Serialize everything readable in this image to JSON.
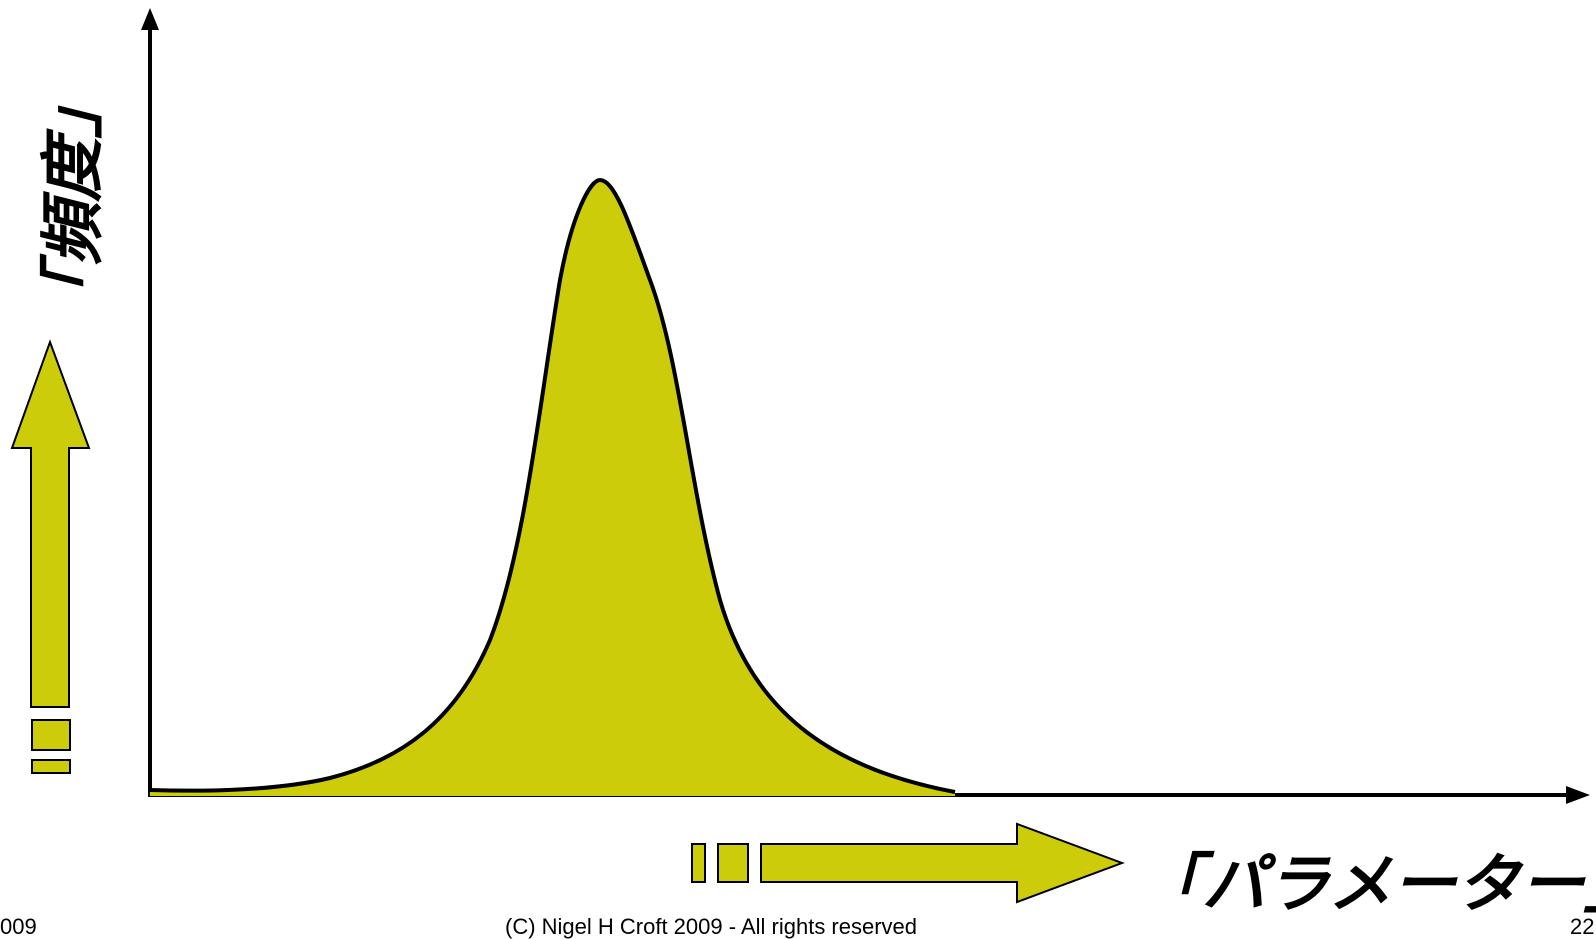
{
  "labels": {
    "y_axis": "「頻度」",
    "x_axis": "「パラメーター」"
  },
  "footer": {
    "left": "009",
    "center": "(C) Nigel H Croft 2009 - All rights reserved",
    "page_number": "22"
  },
  "colors": {
    "fill": "#cccc0b",
    "stroke": "#000000",
    "background": "#ffffff"
  }
}
